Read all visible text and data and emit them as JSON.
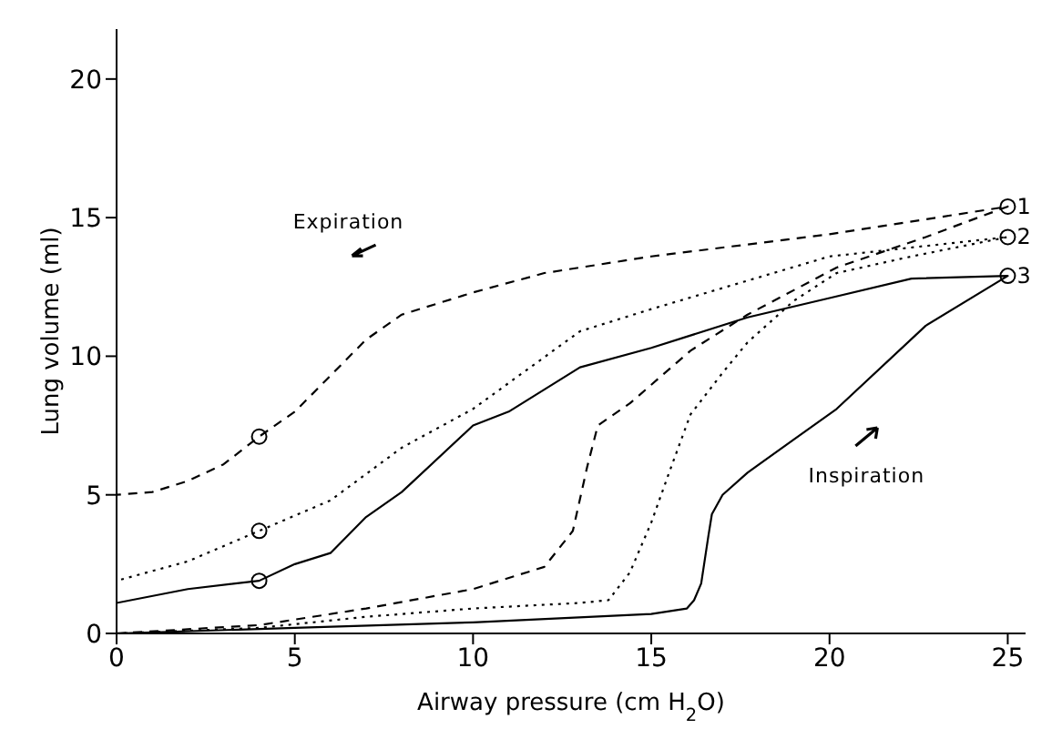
{
  "chart_data": {
    "type": "line",
    "xlabel": "Airway pressure (cm H$_{2}$O)",
    "ylabel": "Lung volume (ml)",
    "xlim": [
      0,
      25.5
    ],
    "xticks": [
      0,
      5,
      10,
      15,
      20,
      25
    ],
    "ylim": [
      0,
      21.8
    ],
    "yticks": [
      0,
      5,
      10,
      15,
      20
    ],
    "grid": false,
    "legend": false,
    "marker": "none",
    "annotations": [
      "Expiration",
      "Inspiration"
    ],
    "series": [
      {
        "name": "1",
        "color": "#000000",
        "line_style": "dashed",
        "x": [
          0,
          4,
          7,
          10,
          12,
          12.8,
          13.2,
          13.5,
          14.4,
          16.1,
          17.7,
          20.2,
          22.7,
          25,
          20,
          15,
          12,
          10,
          8,
          7,
          6,
          5,
          4,
          3,
          2,
          1,
          0
        ],
        "values": [
          0,
          0.3,
          0.9,
          1.6,
          2.4,
          3.7,
          6,
          7.5,
          8.3,
          10.2,
          11.5,
          13.2,
          14.3,
          15.4,
          14.4,
          13.6,
          13,
          12.3,
          11.5,
          10.6,
          9.3,
          8,
          7.1,
          6.1,
          5.5,
          5.1,
          5
        ]
      },
      {
        "name": "2",
        "color": "#000000",
        "line_style": "dotted",
        "x": [
          0,
          4,
          7,
          10,
          13,
          13.8,
          14.4,
          15,
          15.5,
          16.1,
          17,
          17.7,
          19,
          20.2,
          22.3,
          25,
          20,
          15,
          13,
          10,
          8,
          6,
          4,
          2,
          0
        ],
        "values": [
          0,
          0.2,
          0.6,
          0.9,
          1.1,
          1.2,
          2.2,
          4,
          5.8,
          7.9,
          9.4,
          10.5,
          12,
          13,
          13.6,
          14.3,
          13.6,
          11.7,
          10.9,
          8.1,
          6.7,
          4.8,
          3.7,
          2.6,
          1.9
        ]
      },
      {
        "name": "3",
        "color": "#000000",
        "line_style": "solid",
        "x": [
          0,
          5,
          10,
          15,
          16,
          16.2,
          16.4,
          16.6,
          16.7,
          17,
          17.7,
          19,
          20.2,
          22.7,
          25,
          22.3,
          20,
          17.7,
          15,
          13,
          11,
          10,
          8,
          7,
          6,
          5,
          4,
          2,
          0
        ],
        "values": [
          0,
          0.2,
          0.4,
          0.7,
          0.9,
          1.2,
          1.8,
          3.5,
          4.3,
          5,
          5.8,
          7,
          8.1,
          11.1,
          12.9,
          12.8,
          12.1,
          11.4,
          10.3,
          9.6,
          8,
          7.5,
          5.1,
          4.2,
          2.9,
          2.5,
          1.9,
          1.6,
          1.1
        ]
      },
      {
        "type": "scatter",
        "marker": "circle",
        "color": "#000000",
        "x": [
          4,
          4,
          4,
          25,
          25,
          25
        ],
        "values": [
          7.1,
          3.7,
          1.9,
          15.4,
          14.3,
          12.9
        ]
      }
    ]
  }
}
